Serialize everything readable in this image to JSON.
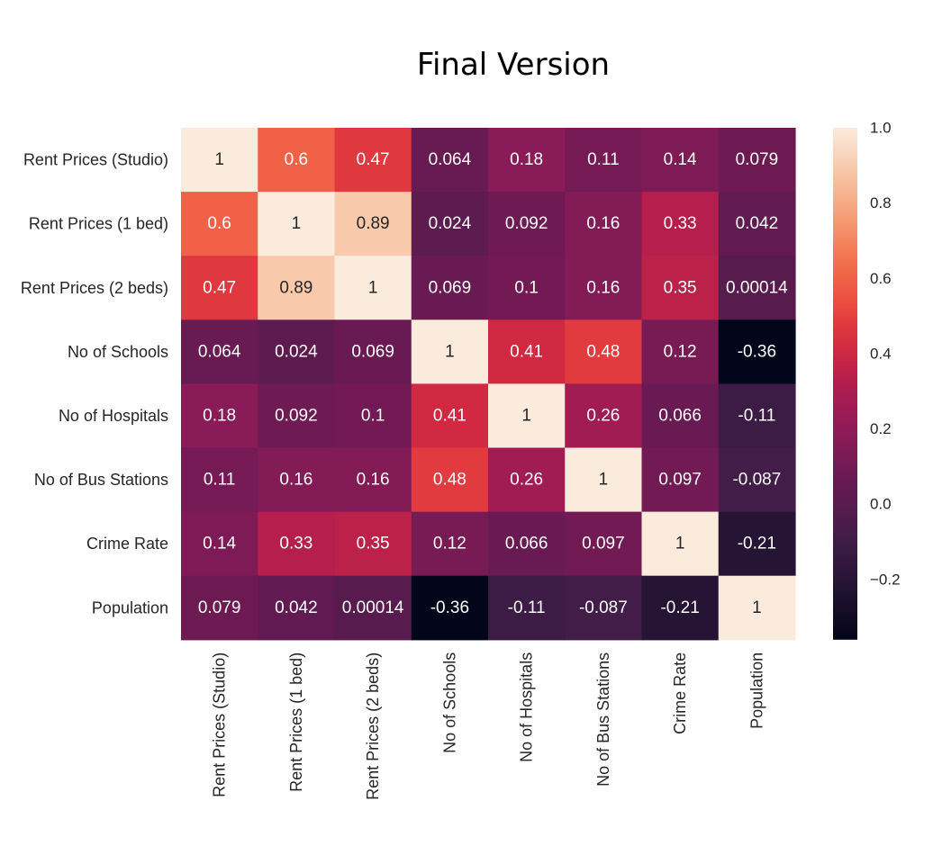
{
  "chart_data": {
    "type": "heatmap",
    "title": "Final Version",
    "row_labels": [
      "Rent Prices (Studio)",
      "Rent Prices (1 bed)",
      "Rent Prices (2 beds)",
      "No of Schools",
      "No of Hospitals",
      "No of Bus Stations",
      "Crime Rate",
      "Population"
    ],
    "col_labels": [
      "Rent Prices (Studio)",
      "Rent Prices (1 bed)",
      "Rent Prices (2 beds)",
      "No of Schools",
      "No of Hospitals",
      "No of Bus Stations",
      "Crime Rate",
      "Population"
    ],
    "values": [
      [
        1,
        0.6,
        0.47,
        0.064,
        0.18,
        0.11,
        0.14,
        0.079
      ],
      [
        0.6,
        1,
        0.89,
        0.024,
        0.092,
        0.16,
        0.33,
        0.042
      ],
      [
        0.47,
        0.89,
        1,
        0.069,
        0.1,
        0.16,
        0.35,
        0.00014
      ],
      [
        0.064,
        0.024,
        0.069,
        1,
        0.41,
        0.48,
        0.12,
        -0.36
      ],
      [
        0.18,
        0.092,
        0.1,
        0.41,
        1,
        0.26,
        0.066,
        -0.11
      ],
      [
        0.11,
        0.16,
        0.16,
        0.48,
        0.26,
        1,
        0.097,
        -0.087
      ],
      [
        0.14,
        0.33,
        0.35,
        0.12,
        0.066,
        0.097,
        1,
        -0.21
      ],
      [
        0.079,
        0.042,
        0.00014,
        -0.36,
        -0.11,
        -0.087,
        -0.21,
        1
      ]
    ],
    "value_labels": [
      [
        "1",
        "0.6",
        "0.47",
        "0.064",
        "0.18",
        "0.11",
        "0.14",
        "0.079"
      ],
      [
        "0.6",
        "1",
        "0.89",
        "0.024",
        "0.092",
        "0.16",
        "0.33",
        "0.042"
      ],
      [
        "0.47",
        "0.89",
        "1",
        "0.069",
        "0.1",
        "0.16",
        "0.35",
        "0.00014"
      ],
      [
        "0.064",
        "0.024",
        "0.069",
        "1",
        "0.41",
        "0.48",
        "0.12",
        "-0.36"
      ],
      [
        "0.18",
        "0.092",
        "0.1",
        "0.41",
        "1",
        "0.26",
        "0.066",
        "-0.11"
      ],
      [
        "0.11",
        "0.16",
        "0.16",
        "0.48",
        "0.26",
        "1",
        "0.097",
        "-0.087"
      ],
      [
        "0.14",
        "0.33",
        "0.35",
        "0.12",
        "0.066",
        "0.097",
        "1",
        "-0.21"
      ],
      [
        "0.079",
        "0.042",
        "0.00014",
        "-0.36",
        "-0.11",
        "-0.087",
        "-0.21",
        "1"
      ]
    ],
    "color_range": [
      -0.36,
      1
    ],
    "colorbar_ticks": [
      "1.0",
      "0.8",
      "0.6",
      "0.4",
      "0.2",
      "0.0",
      "−0.2"
    ],
    "colorbar_tick_values": [
      1.0,
      0.8,
      0.6,
      0.4,
      0.2,
      0.0,
      -0.2
    ],
    "colormap": "rocket",
    "grid": false,
    "legend": "colorbar-right"
  }
}
